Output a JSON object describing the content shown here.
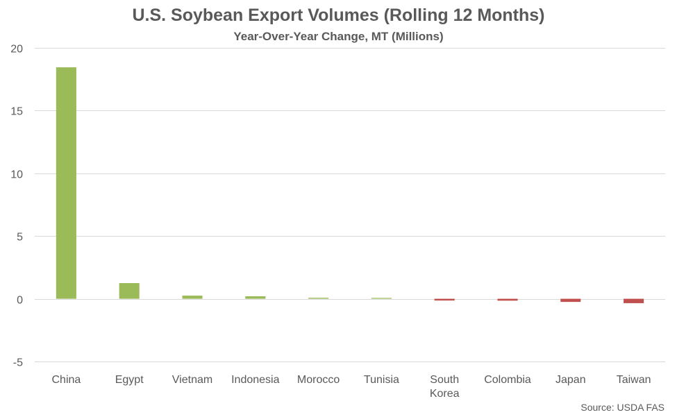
{
  "chart_data": {
    "type": "bar",
    "title": "U.S. Soybean Export Volumes (Rolling 12 Months)",
    "subtitle": "Year-Over-Year Change, MT (Millions)",
    "categories": [
      [
        "China"
      ],
      [
        "Egypt"
      ],
      [
        "Vietnam"
      ],
      [
        "Indonesia"
      ],
      [
        "Morocco"
      ],
      [
        "Tunisia"
      ],
      [
        "South",
        "Korea"
      ],
      [
        "Colombia"
      ],
      [
        "Japan"
      ],
      [
        "Taiwan"
      ]
    ],
    "values": [
      18.45,
      1.25,
      0.25,
      0.2,
      0.08,
      0.07,
      -0.14,
      -0.15,
      -0.25,
      -0.35
    ],
    "ylim": [
      -5,
      20
    ],
    "yticks": [
      -5,
      0,
      5,
      10,
      15,
      20
    ],
    "grid": true,
    "legend": "none",
    "colors": {
      "positive": "#9BBB59",
      "negative": "#C0504D",
      "grid": "#D9D9D9"
    },
    "source": "Source: USDA FAS"
  }
}
